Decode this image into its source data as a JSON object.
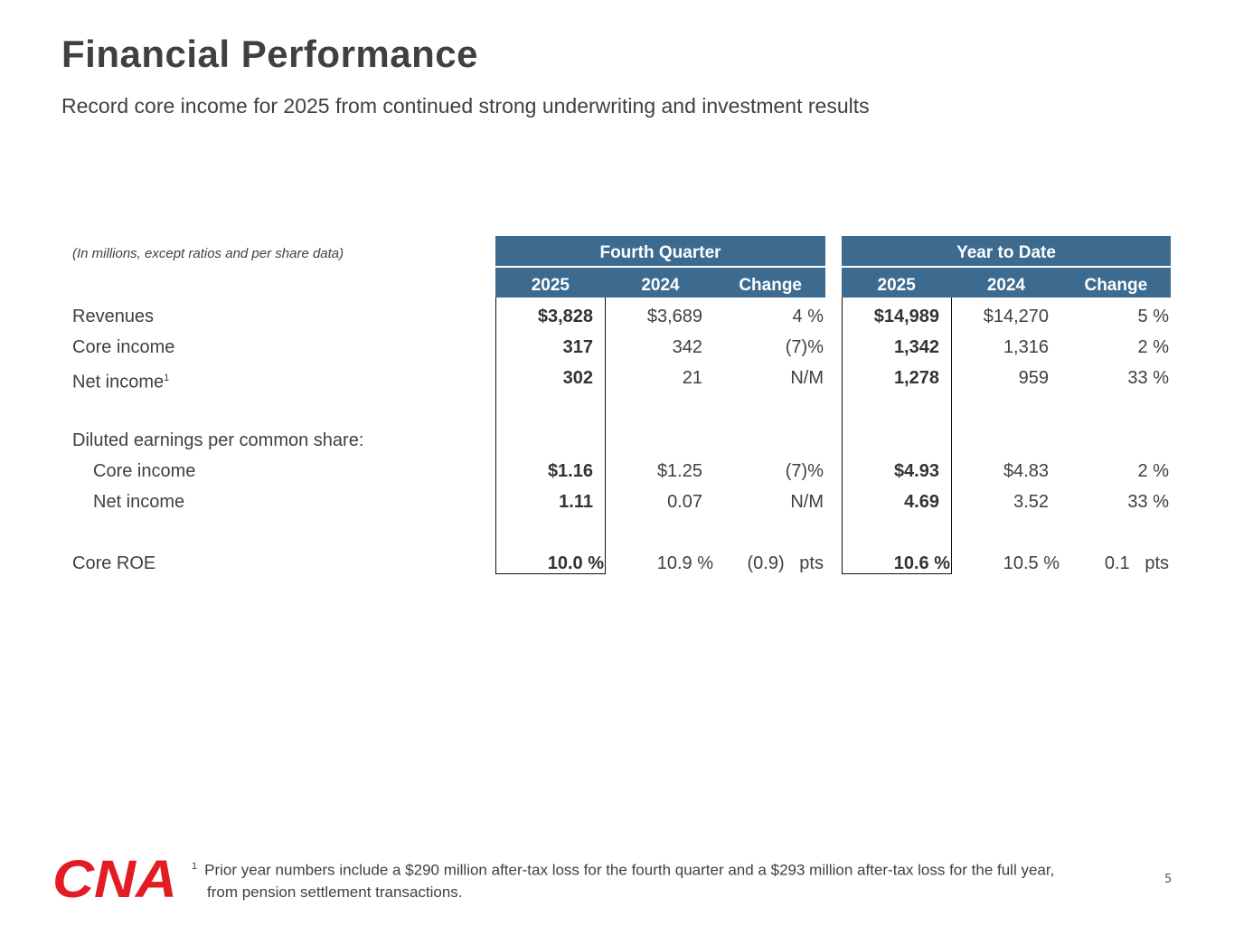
{
  "title": "Financial Performance",
  "subtitle": "Record core income for 2025 from continued strong underwriting and investment results",
  "table": {
    "note": "(In millions, except ratios and per share data)",
    "groups": [
      "Fourth Quarter",
      "Year to Date"
    ],
    "columns": [
      "2025",
      "2024",
      "Change"
    ],
    "rows": [
      {
        "label": "Revenues",
        "q": [
          "$3,828",
          "$3,689",
          "4 %"
        ],
        "y": [
          "$14,989",
          "$14,270",
          "5 %"
        ]
      },
      {
        "label": "Core income",
        "q": [
          "317",
          "342",
          "(7)%"
        ],
        "y": [
          "1,342",
          "1,316",
          "2 %"
        ]
      },
      {
        "label": "Net income",
        "sup": "1",
        "q": [
          "302",
          "21",
          "N/M"
        ],
        "y": [
          "1,278",
          "959",
          "33 %"
        ]
      },
      {
        "label": "Diluted earnings per common share:"
      },
      {
        "label": "Core income",
        "q": [
          "$1.16",
          "$1.25",
          "(7)%"
        ],
        "y": [
          "$4.93",
          "$4.83",
          "2 %"
        ]
      },
      {
        "label": "Net income",
        "q": [
          "1.11",
          "0.07",
          "N/M"
        ],
        "y": [
          "4.69",
          "3.52",
          "33 %"
        ]
      },
      {
        "label": "Core ROE",
        "q": [
          "10.0 %",
          "10.9 %",
          "(0.9)   pts"
        ],
        "y": [
          "10.6 %",
          "10.5 %",
          "0.1   pts"
        ]
      }
    ]
  },
  "footnote": {
    "marker": "1",
    "line1": "Prior year numbers include a $290 million after-tax loss for the fourth quarter and a $293 million after-tax loss for the full year,",
    "line2": "from pension settlement transactions."
  },
  "logo": "CNA",
  "page_number": "5",
  "colors": {
    "header": "#3d6b8f",
    "logo": "#e31b23"
  }
}
